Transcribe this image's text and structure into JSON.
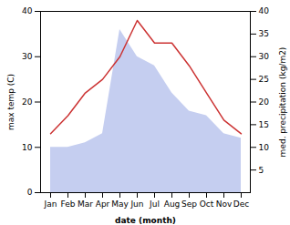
{
  "chart_data": {
    "type": "line",
    "categories": [
      "Jan",
      "Feb",
      "Mar",
      "Apr",
      "May",
      "Jun",
      "Jul",
      "Aug",
      "Sep",
      "Oct",
      "Nov",
      "Dec"
    ],
    "xlabel": "date (month)",
    "ylabel": "max temp (C)",
    "y2label": "med. precipitation (kg/m2)",
    "ylim": [
      0,
      40
    ],
    "yticks": [
      0,
      10,
      20,
      30,
      40
    ],
    "y2lim": [
      0,
      40
    ],
    "y2ticks": [
      5,
      10,
      15,
      20,
      25,
      30,
      35,
      40
    ],
    "series": [
      {
        "type": "area",
        "axis": "y2",
        "color": "#c5cef0",
        "values": [
          10,
          10,
          11,
          13,
          36,
          30,
          28,
          22,
          18,
          17,
          13,
          12
        ]
      },
      {
        "type": "line",
        "color": "#cc3333",
        "values": [
          13,
          17,
          22,
          25,
          30,
          38,
          33,
          33,
          28,
          22,
          16,
          13
        ]
      }
    ]
  }
}
